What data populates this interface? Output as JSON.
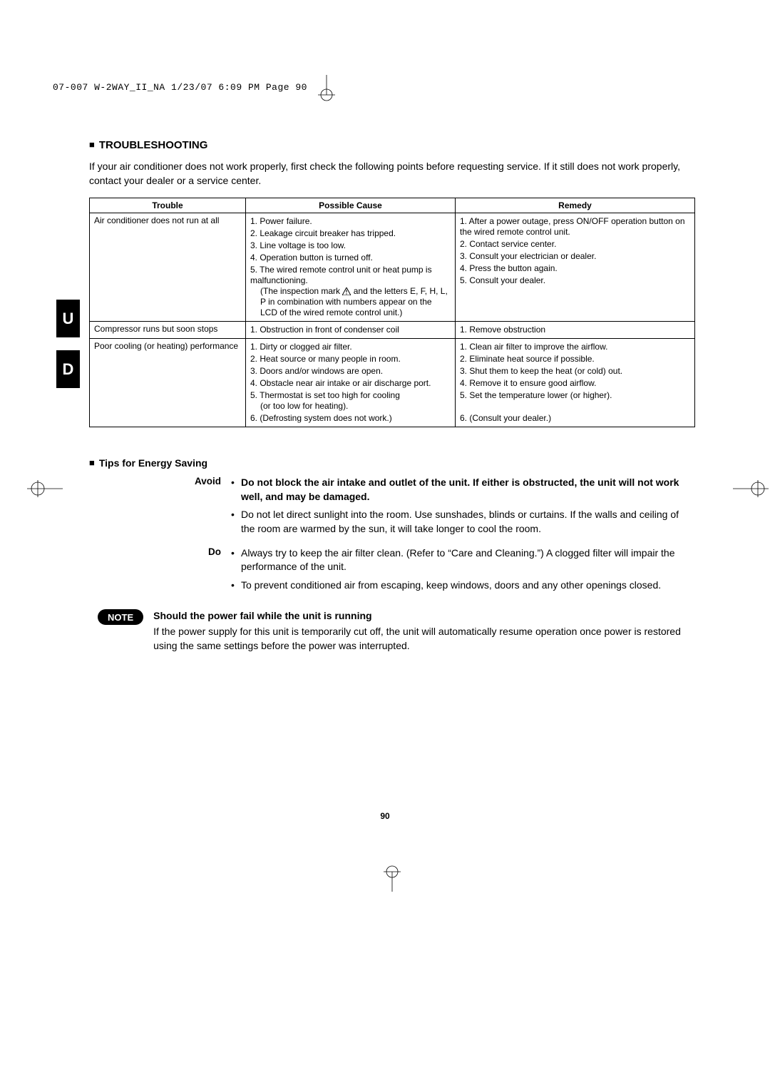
{
  "header_line": "07-007 W-2WAY_II_NA  1/23/07  6:09 PM  Page 90",
  "side_tabs": [
    "U",
    "D"
  ],
  "page_number": "90",
  "troubleshooting": {
    "title": "TROUBLESHOOTING",
    "intro": "If your air conditioner does not work properly, first check the following points before requesting service. If it still does not work properly, contact your dealer or a service center.",
    "columns": [
      "Trouble",
      "Possible Cause",
      "Remedy"
    ],
    "rows": [
      {
        "trouble": "Air conditioner does not run at all",
        "causes": [
          "1. Power failure.",
          "2. Leakage circuit breaker has tripped.",
          "3. Line voltage is too low.",
          "4. Operation button is turned off.",
          "5. The wired remote control unit or heat pump is malfunctioning.<br><span class=\"sub\">(The inspection mark <svg class=\"warn-icon\" width=\"12\" height=\"11\" viewBox=\"0 0 12 11\"><path d=\"M6 0 L12 11 L0 11 Z\" fill=\"none\" stroke=\"#000\" stroke-width=\"1\"/><line x1=\"6\" y1=\"3\" x2=\"6\" y2=\"7\" stroke=\"#000\" stroke-width=\"1\"/><circle cx=\"6\" cy=\"9\" r=\"0.7\" fill=\"#000\"/></svg> and the letters E, F, H, L, P in combination with numbers appear on the LCD of the wired remote control unit.)</span>"
        ],
        "remedies": [
          "1. After a power outage, press ON/OFF operation button on the wired remote control unit.",
          "2. Contact service center.",
          "3. Consult your electrician or dealer.",
          "4. Press the button again.",
          "5. Consult your dealer."
        ]
      },
      {
        "trouble": "Compressor runs but soon stops",
        "causes": [
          "1. Obstruction in front of condenser coil"
        ],
        "remedies": [
          "1. Remove obstruction"
        ]
      },
      {
        "trouble": "Poor cooling (or heating) performance",
        "causes": [
          "1. Dirty or clogged air filter.",
          "2. Heat source or many people in room.",
          "3. Doors and/or windows are open.",
          "4. Obstacle near air intake or air discharge port.",
          "5. Thermostat is set too high for cooling<br><span class=\"sub\">(or too low for heating).</span>",
          "6. (Defrosting system does not work.)"
        ],
        "remedies": [
          "1. Clean air filter to improve the airflow.",
          "2. Eliminate heat source if possible.",
          "3. Shut them to keep the heat (or cold) out.",
          "4. Remove it to ensure good airflow.",
          "5. Set the temperature lower (or higher).",
          "<br>6. (Consult your dealer.)"
        ]
      }
    ]
  },
  "tips": {
    "title": "Tips for Energy Saving",
    "avoid_label": "Avoid",
    "do_label": "Do",
    "avoid": [
      {
        "bold": true,
        "text": "Do not block the air intake and outlet of the unit. If either is obstructed, the unit will not work well, and may be damaged."
      },
      {
        "bold": false,
        "text": "Do not let direct sunlight into the room. Use sunshades, blinds or curtains. If the walls and ceiling of the room are warmed by the sun, it will take longer to cool the room."
      }
    ],
    "do": [
      {
        "bold": false,
        "text": "Always try to keep the air filter clean. (Refer to “Care and Cleaning.”) A clogged filter will impair the performance of the unit."
      },
      {
        "bold": false,
        "text": "To prevent conditioned air from escaping, keep windows, doors and any other openings closed."
      }
    ]
  },
  "note": {
    "badge": "NOTE",
    "title": "Should the power fail while the unit is running",
    "body": "If the power supply for this unit is temporarily cut off, the unit will automatically resume operation once power is restored using the same settings before the power was interrupted."
  },
  "colors": {
    "page_bg": "#ffffff",
    "text": "#000000",
    "tab_bg": "#000000",
    "tab_fg": "#ffffff",
    "note_badge_bg": "#000000",
    "note_badge_fg": "#ffffff",
    "table_border": "#000000"
  },
  "fonts": {
    "body": "Arial",
    "header_line": "Courier New",
    "base_size_pt": 10.5,
    "title_size_pt": 11.5,
    "table_size_pt": 9
  }
}
